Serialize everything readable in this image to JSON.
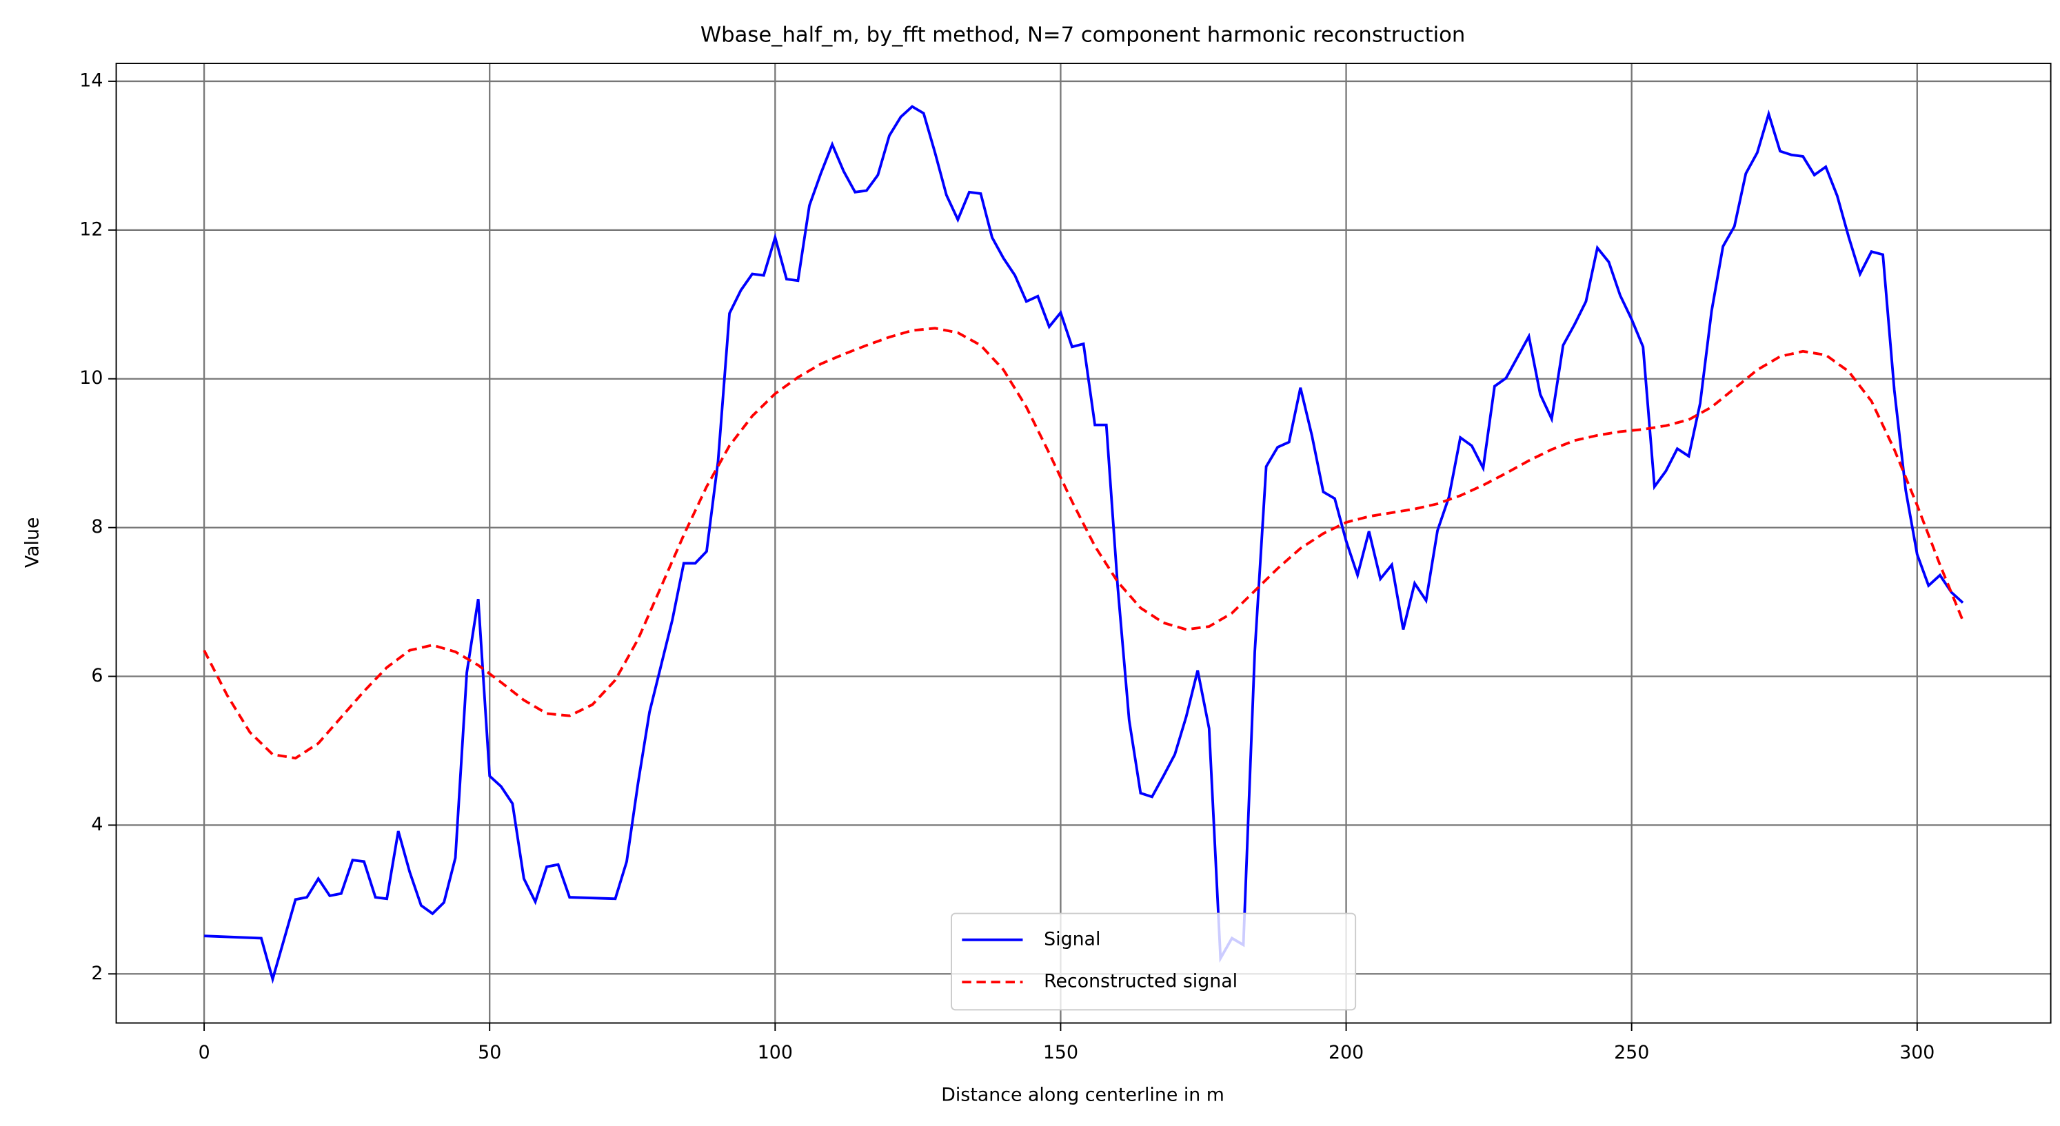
{
  "chart_data": {
    "type": "line",
    "title": "Wbase_half_m, by_fft method, N=7 component harmonic reconstruction",
    "x_label": "Distance along centerline in m",
    "y_label": "Value",
    "xlim": [
      -15.4,
      323.4
    ],
    "ylim": [
      1.34,
      14.24
    ],
    "xticks": [
      0,
      50,
      100,
      150,
      200,
      250,
      300
    ],
    "yticks": [
      2,
      4,
      6,
      8,
      10,
      12,
      14
    ],
    "grid": true,
    "legend": "lower center",
    "series": [
      {
        "name": "Signal",
        "color": "#0000ff",
        "dash": "solid",
        "x": [
          0,
          10,
          12,
          16,
          18,
          20,
          22,
          24,
          26,
          28,
          30,
          32,
          34,
          36,
          38,
          40,
          42,
          44,
          46,
          48,
          50,
          52,
          54,
          56,
          58,
          60,
          62,
          64,
          72,
          74,
          76,
          78,
          80,
          82,
          84,
          86,
          88,
          90,
          92,
          94,
          96,
          98,
          100,
          102,
          104,
          106,
          108,
          110,
          112,
          114,
          116,
          118,
          120,
          122,
          124,
          126,
          128,
          130,
          132,
          134,
          136,
          138,
          140,
          142,
          144,
          146,
          148,
          150,
          152,
          154,
          156,
          158,
          160,
          162,
          164,
          166,
          168,
          170,
          172,
          174,
          176,
          178,
          180,
          182,
          184,
          186,
          188,
          190,
          192,
          194,
          196,
          198,
          200,
          202,
          204,
          206,
          208,
          210,
          212,
          214,
          216,
          218,
          220,
          222,
          224,
          226,
          228,
          230,
          232,
          234,
          236,
          238,
          240,
          242,
          244,
          246,
          248,
          250,
          252,
          254,
          256,
          258,
          260,
          262,
          264,
          266,
          268,
          270,
          272,
          274,
          276,
          278,
          280,
          282,
          284,
          286,
          288,
          290,
          292,
          294,
          296,
          298,
          300,
          302,
          304,
          306,
          308
        ],
        "values": [
          2.51,
          2.48,
          1.93,
          3.0,
          3.03,
          3.28,
          3.05,
          3.08,
          3.53,
          3.51,
          3.03,
          3.01,
          3.92,
          3.37,
          2.92,
          2.81,
          2.96,
          3.56,
          6.05,
          7.04,
          4.66,
          4.52,
          4.29,
          3.28,
          2.97,
          3.44,
          3.47,
          3.03,
          3.01,
          3.51,
          4.57,
          5.52,
          6.14,
          6.76,
          7.52,
          7.52,
          7.68,
          8.89,
          10.88,
          11.19,
          11.41,
          11.39,
          11.9,
          11.34,
          11.32,
          12.33,
          12.76,
          13.15,
          12.79,
          12.51,
          12.53,
          12.74,
          13.27,
          13.52,
          13.66,
          13.57,
          13.04,
          12.47,
          12.14,
          12.51,
          12.49,
          11.9,
          11.62,
          11.39,
          11.04,
          11.11,
          10.7,
          10.89,
          10.43,
          10.47,
          9.38,
          9.38,
          7.2,
          5.41,
          4.43,
          4.38,
          4.66,
          4.95,
          5.46,
          6.08,
          5.3,
          2.21,
          2.48,
          2.39,
          6.33,
          8.82,
          9.08,
          9.15,
          9.88,
          9.24,
          8.48,
          8.39,
          7.82,
          7.36,
          7.95,
          7.31,
          7.5,
          6.63,
          7.25,
          7.02,
          7.96,
          8.41,
          9.21,
          9.1,
          8.8,
          9.9,
          10.01,
          10.29,
          10.57,
          9.79,
          9.46,
          10.45,
          10.73,
          11.04,
          11.76,
          11.57,
          11.12,
          10.8,
          10.43,
          8.55,
          8.76,
          9.06,
          8.96,
          9.67,
          10.91,
          11.78,
          12.05,
          12.76,
          13.04,
          13.56,
          13.06,
          13.01,
          12.99,
          12.74,
          12.85,
          12.46,
          11.91,
          11.41,
          11.71,
          11.67,
          9.85,
          8.5,
          7.64,
          7.22,
          7.36,
          7.13,
          6.99
        ]
      },
      {
        "name": "Reconstructed signal",
        "color": "#ff0000",
        "dash": "dashed",
        "x": [
          0,
          4,
          8,
          12,
          16,
          20,
          24,
          28,
          32,
          36,
          40,
          44,
          48,
          52,
          56,
          60,
          64,
          68,
          72,
          76,
          80,
          84,
          88,
          92,
          96,
          100,
          104,
          108,
          112,
          116,
          120,
          124,
          128,
          132,
          136,
          140,
          144,
          148,
          152,
          156,
          160,
          164,
          168,
          172,
          176,
          180,
          184,
          188,
          192,
          196,
          200,
          204,
          208,
          212,
          216,
          220,
          224,
          228,
          232,
          236,
          240,
          244,
          248,
          252,
          256,
          260,
          264,
          268,
          272,
          276,
          280,
          284,
          288,
          292,
          296,
          300,
          304,
          308
        ],
        "values": [
          6.35,
          5.75,
          5.25,
          4.95,
          4.9,
          5.1,
          5.45,
          5.8,
          6.12,
          6.35,
          6.42,
          6.33,
          6.15,
          5.92,
          5.68,
          5.5,
          5.47,
          5.62,
          5.95,
          6.5,
          7.2,
          7.9,
          8.55,
          9.1,
          9.5,
          9.8,
          10.02,
          10.2,
          10.33,
          10.45,
          10.56,
          10.65,
          10.68,
          10.62,
          10.45,
          10.12,
          9.62,
          9.0,
          8.35,
          7.75,
          7.27,
          6.92,
          6.72,
          6.63,
          6.67,
          6.85,
          7.15,
          7.45,
          7.72,
          7.92,
          8.07,
          8.15,
          8.2,
          8.25,
          8.32,
          8.43,
          8.57,
          8.73,
          8.9,
          9.05,
          9.17,
          9.24,
          9.29,
          9.32,
          9.37,
          9.45,
          9.62,
          9.87,
          10.12,
          10.3,
          10.37,
          10.32,
          10.1,
          9.7,
          9.05,
          8.3,
          7.5,
          6.75
        ]
      }
    ]
  }
}
